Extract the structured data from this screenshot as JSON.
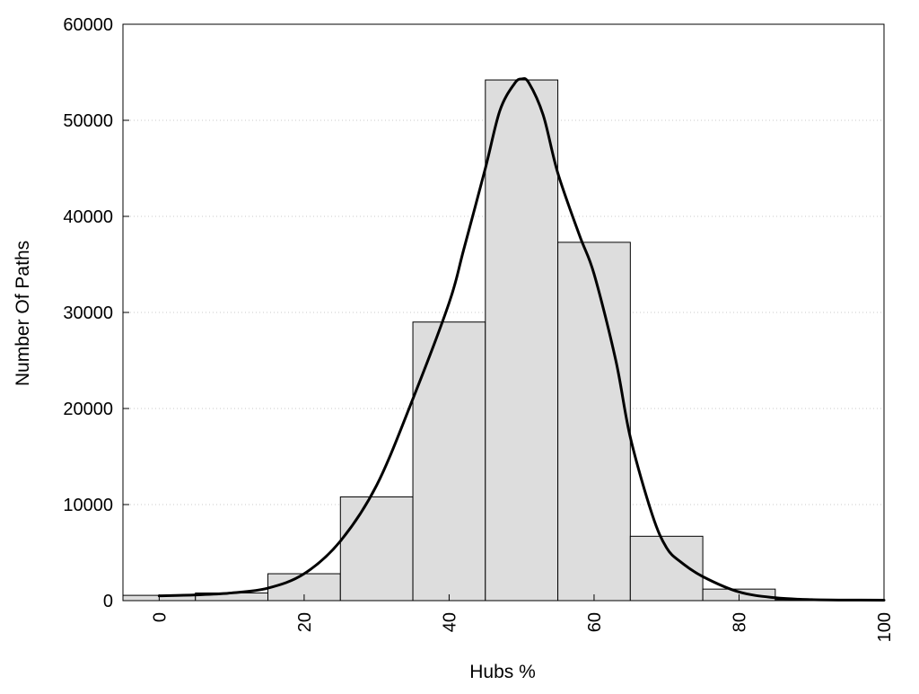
{
  "chart_data": {
    "type": "bar",
    "title": "",
    "xlabel": "Hubs %",
    "ylabel": "Number Of Paths",
    "xlim": [
      -5,
      100
    ],
    "ylim": [
      0,
      60000
    ],
    "x_ticks": [
      "0",
      "20",
      "40",
      "60",
      "80",
      "100"
    ],
    "y_ticks": [
      "0",
      "10000",
      "20000",
      "30000",
      "40000",
      "50000",
      "60000"
    ],
    "grid": "horizontal dotted",
    "legend": "none",
    "bin_width": 10,
    "categories": [
      "0",
      "10",
      "20",
      "30",
      "40",
      "50",
      "60",
      "70",
      "80",
      "90"
    ],
    "values": [
      550,
      800,
      2800,
      10800,
      29000,
      54200,
      37300,
      6700,
      1200,
      100
    ],
    "bar_color": "#dddddd",
    "curve": {
      "x": [
        0,
        5,
        10,
        15,
        20,
        25,
        30,
        35,
        40,
        42,
        45,
        47,
        49,
        50,
        51,
        53,
        55,
        58,
        60,
        63,
        65,
        68,
        70,
        72,
        75,
        80,
        85,
        90,
        95,
        100
      ],
      "y": [
        500,
        600,
        800,
        1300,
        2800,
        6200,
        12000,
        21000,
        31000,
        36500,
        45000,
        51000,
        53800,
        54300,
        53900,
        50500,
        44500,
        38000,
        34000,
        25000,
        17000,
        9000,
        5500,
        4000,
        2500,
        900,
        300,
        100,
        60,
        50
      ],
      "color": "#000000"
    }
  }
}
